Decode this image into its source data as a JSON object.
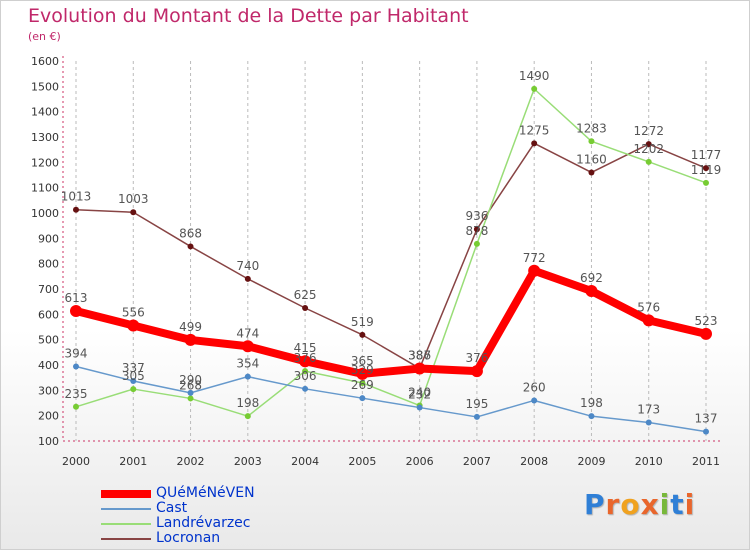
{
  "page": {
    "title": "Evolution du Montant de la Dette par Habitant",
    "subtitle": "(en €)",
    "logo": "Proxiti"
  },
  "chart_data": {
    "type": "line",
    "x": [
      "2000",
      "2001",
      "2002",
      "2003",
      "2004",
      "2005",
      "2006",
      "2007",
      "2008",
      "2009",
      "2010",
      "2011"
    ],
    "ylim": [
      100,
      1600
    ],
    "yticks": [
      100,
      200,
      300,
      400,
      500,
      600,
      700,
      800,
      900,
      1000,
      1100,
      1200,
      1300,
      1400,
      1500,
      1600
    ],
    "grid": "vertical",
    "legend": "bottom-left",
    "series": [
      {
        "name": "QUéMéNéVEN",
        "color": "#ff0000",
        "marker": "#ff0000",
        "width": 8,
        "labelColor": "#555555",
        "values": [
          613,
          556,
          499,
          474,
          415,
          365,
          386,
          376,
          772,
          692,
          576,
          523
        ]
      },
      {
        "name": "Cast",
        "color": "#6699cc",
        "marker": "#4d88c6",
        "width": 1.5,
        "labelColor": "#555555",
        "values": [
          394,
          337,
          290,
          354,
          306,
          269,
          232,
          195,
          260,
          198,
          173,
          137
        ]
      },
      {
        "name": "Landrévarzec",
        "color": "#99dd77",
        "marker": "#77cc33",
        "width": 1.5,
        "labelColor": "#555555",
        "values": [
          235,
          305,
          268,
          198,
          376,
          329,
          240,
          878,
          1490,
          1283,
          1202,
          1119
        ]
      },
      {
        "name": "Locronan",
        "color": "#884444",
        "marker": "#661111",
        "width": 1.5,
        "labelColor": "#555555",
        "values": [
          1013,
          1003,
          868,
          740,
          625,
          519,
          387,
          936,
          1275,
          1160,
          1272,
          1177
        ]
      }
    ]
  }
}
